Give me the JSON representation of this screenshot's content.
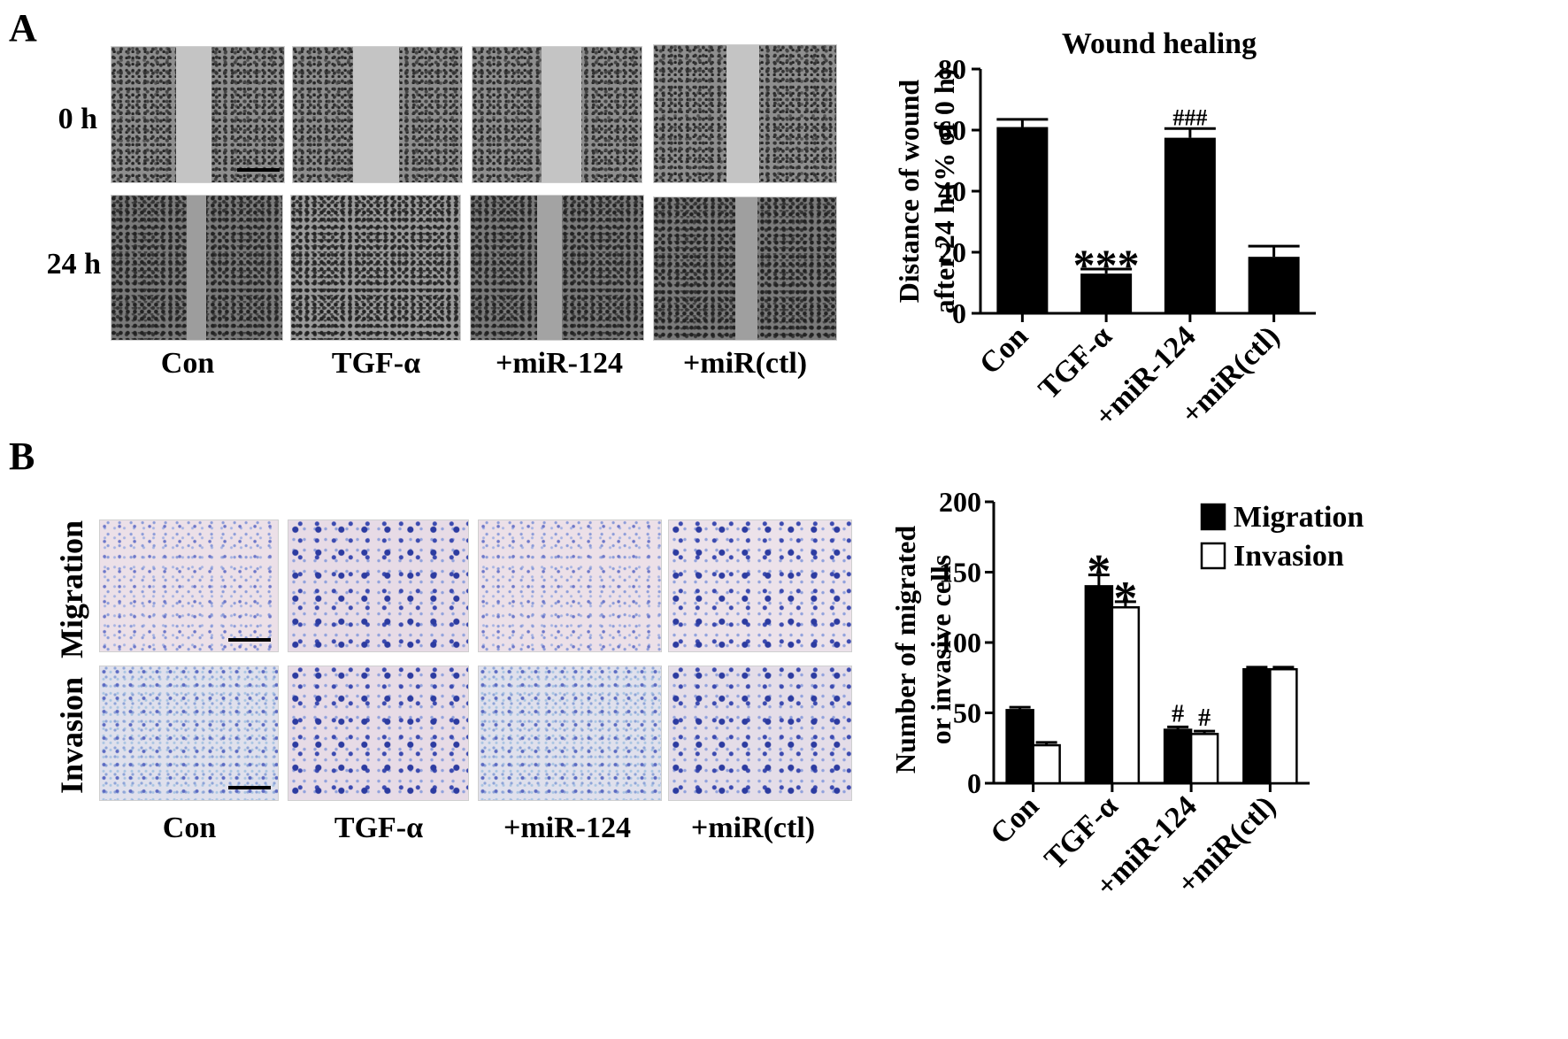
{
  "panels": {
    "a": {
      "letter": "A",
      "row_labels": [
        "0 h",
        "24 h"
      ],
      "col_labels": [
        "Con",
        "TGF-α",
        "+miR-124",
        "+miR(ctl)"
      ]
    },
    "b": {
      "letter": "B",
      "row_labels": [
        "Migration",
        "Invasion"
      ],
      "col_labels": [
        "Con",
        "TGF-α",
        "+miR-124",
        "+miR(ctl)"
      ]
    }
  },
  "chart_data": [
    {
      "type": "bar",
      "title": "Wound healing",
      "ylabel_line1": "Distance of wound",
      "ylabel_line2": "after 24 h (% of 0 h)",
      "categories": [
        "Con",
        "TGF-α",
        "+miR-124",
        "+miR(ctl)"
      ],
      "values": [
        61,
        13,
        57.5,
        18.5
      ],
      "errors": [
        2.5,
        1.5,
        3,
        3.5
      ],
      "annotations": [
        "",
        "***",
        "###",
        ""
      ],
      "ylim": [
        0,
        80
      ],
      "yticks": [
        0,
        20,
        40,
        60,
        80
      ],
      "bar_color": "#000000"
    },
    {
      "type": "bar",
      "ylabel_line1": "Number of migrated",
      "ylabel_line2": "or invasive cells",
      "categories": [
        "Con",
        "TGF-α",
        "+miR-124",
        "+miR(ctl)"
      ],
      "series": [
        {
          "name": "Migration",
          "values": [
            52,
            140,
            38,
            81
          ],
          "errors": [
            2,
            8,
            2,
            1.5
          ],
          "annotations": [
            "",
            "*",
            "#",
            ""
          ],
          "color": "#000000"
        },
        {
          "name": "Invasion",
          "values": [
            27,
            125,
            35,
            81
          ],
          "errors": [
            2,
            4,
            2,
            1.5
          ],
          "annotations": [
            "",
            "*",
            "#",
            ""
          ],
          "color": "#ffffff"
        }
      ],
      "ylim": [
        0,
        200
      ],
      "yticks": [
        0,
        50,
        100,
        150,
        200
      ],
      "legend_position": "top-right"
    }
  ]
}
